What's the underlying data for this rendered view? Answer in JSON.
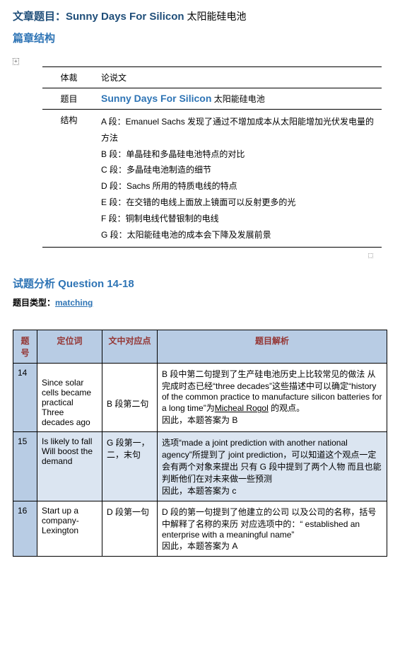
{
  "article": {
    "label": "文章题目：",
    "title_en": "Sunny Days For Silicon",
    "title_zh": "  太阳能硅电池"
  },
  "section1": {
    "heading": "篇章结构",
    "expand_marker": "+"
  },
  "struct": {
    "rows": [
      {
        "label": "体裁",
        "value_plain": "论说文"
      },
      {
        "label": "题目",
        "value_en": "Sunny Days For Silicon",
        "value_zh": " 太阳能硅电池"
      },
      {
        "label": "结构",
        "lines": [
          "A 段：Emanuel Sachs  发现了通过不增加成本从太阳能增加光伏发电量的方法",
          "B 段：单晶硅和多晶硅电池特点的对比",
          "C 段：多晶硅电池制造的细节",
          "D 段：Sachs 所用的特质电线的特点",
          "E 段：在交错的电线上面放上镜面可以反射更多的光",
          "F 段：铜制电线代替银制的电线",
          "G 段：太阳能硅电池的成本会下降及发展前景"
        ]
      }
    ]
  },
  "section2": {
    "heading": "试题分析 Question 14-18",
    "type_label": "题目类型：",
    "type_value": "matching"
  },
  "analysis": {
    "headers": [
      "题号",
      "定位词",
      "文中对应点",
      "题目解析"
    ],
    "rows": [
      {
        "num": "14",
        "loc": "Since solar cells became practical\nThree decades ago",
        "match": "B 段第二句",
        "expl": "B 段中第二句提到了生产硅电池历史上比较常见的做法 从完成时态已经“three decades”这些描述中可以确定“history of the common practice to manufacture silicon batteries for a long time”为Micheal Rogol  的观点。\n因此，本题答案为 B",
        "underline_in_expl": "Micheal Rogol",
        "shade": false
      },
      {
        "num": "15",
        "loc": "Is likely to fall\nWill boost the demand",
        "match": "G  段第一，二，末句",
        "expl": "选项“made a joint prediction with another national agency”所提到了 joint prediction，可以知道这个观点一定会有两个对象来提出  只有 G 段中提到了两个人物  而且也能判断他们在对未来做一些预测\n因此，本题答案为 c",
        "shade": true
      },
      {
        "num": "16",
        "loc": "Start up a company-Lexington",
        "match": "D 段第一句",
        "expl": "D  段的第一句提到了他建立的公司  以及公司的名称，括号中解释了名称的来历  对应选项中的：“ established an enterprise with a meaningful name”\n因此，本题答案为 A",
        "shade": false
      }
    ]
  }
}
